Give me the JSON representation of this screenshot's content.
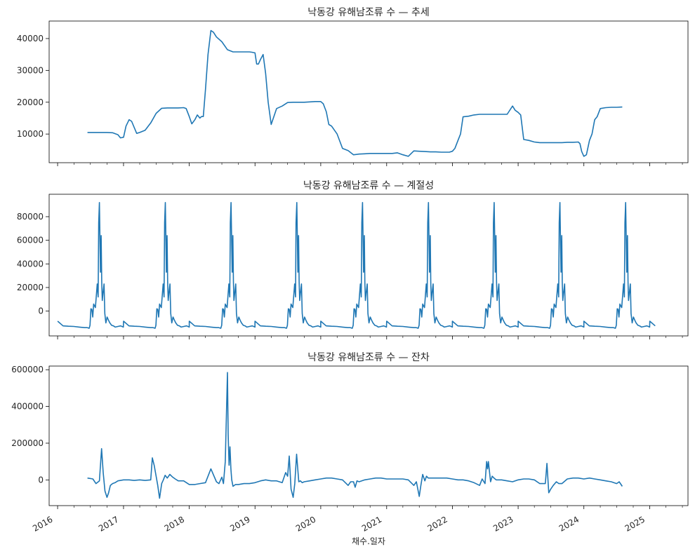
{
  "figure": {
    "xlabel": "채수.일자",
    "line_color": "#1f77b4",
    "x_ticks": [
      "2016-01-01",
      "2017-01-01",
      "2018-01-01",
      "2019-01-01",
      "2020-01-01",
      "2021-01-01",
      "2022-01-01",
      "2023-01-01",
      "2024-01-01",
      "2025-01-01"
    ],
    "x_tick_labels": [
      "2016",
      "2017",
      "2018",
      "2019",
      "2020",
      "2021",
      "2022",
      "2023",
      "2024",
      "2025"
    ],
    "x_range": [
      "2015-11-15",
      "2025-08-01"
    ]
  },
  "chart_data": [
    {
      "type": "line",
      "title": "낙동강 유해남조류 수 — 추세",
      "xlabel": "",
      "ylabel": "",
      "ylim": [
        1000,
        45500
      ],
      "y_ticks": [
        10000,
        20000,
        30000,
        40000
      ],
      "grid": false,
      "series": [
        {
          "x": [
            "2016-06-15",
            "2016-09-01",
            "2016-10-01",
            "2016-11-01",
            "2016-12-01",
            "2016-12-15",
            "2017-01-01",
            "2017-01-15",
            "2017-02-01",
            "2017-02-15",
            "2017-03-15",
            "2017-04-01",
            "2017-05-01",
            "2017-06-01",
            "2017-07-01",
            "2017-08-01",
            "2017-09-01",
            "2017-10-01",
            "2017-11-01",
            "2017-12-01",
            "2017-12-15",
            "2018-01-01",
            "2018-01-15",
            "2018-02-01",
            "2018-02-15",
            "2018-03-01",
            "2018-03-10",
            "2018-03-20",
            "2018-04-01",
            "2018-04-15",
            "2018-05-01",
            "2018-05-15",
            "2018-06-01",
            "2018-07-01",
            "2018-08-01",
            "2018-09-01",
            "2018-10-01",
            "2018-11-01",
            "2018-11-15",
            "2018-12-01",
            "2018-12-15",
            "2019-01-01",
            "2019-01-10",
            "2019-01-20",
            "2019-02-01",
            "2019-02-15",
            "2019-03-01",
            "2019-03-15",
            "2019-04-01",
            "2019-05-01",
            "2019-06-01",
            "2019-07-01",
            "2019-08-01",
            "2019-09-01",
            "2019-10-01",
            "2019-11-01",
            "2019-12-01",
            "2020-01-01",
            "2020-01-15",
            "2020-02-01",
            "2020-02-15",
            "2020-03-01",
            "2020-04-01",
            "2020-05-01",
            "2020-06-01",
            "2020-07-01",
            "2020-08-01",
            "2020-09-01",
            "2020-10-01",
            "2020-11-01",
            "2020-12-01",
            "2020-12-15",
            "2021-01-01",
            "2021-01-15",
            "2021-02-01",
            "2021-03-01",
            "2021-04-01",
            "2021-05-01",
            "2021-06-01",
            "2021-07-01",
            "2021-08-01",
            "2021-09-01",
            "2021-10-01",
            "2021-11-01",
            "2021-12-01",
            "2021-12-15",
            "2022-01-01",
            "2022-01-15",
            "2022-02-01",
            "2022-02-15",
            "2022-03-01",
            "2022-04-01",
            "2022-05-01",
            "2022-06-01",
            "2022-07-01",
            "2022-08-01",
            "2022-09-01",
            "2022-10-01",
            "2022-11-01",
            "2022-12-01",
            "2022-12-15",
            "2023-01-01",
            "2023-01-15",
            "2023-02-01",
            "2023-03-01",
            "2023-04-01",
            "2023-05-01",
            "2023-06-01",
            "2023-07-01",
            "2023-08-01",
            "2023-09-01",
            "2023-10-01",
            "2023-11-01",
            "2023-12-01",
            "2023-12-10",
            "2023-12-20",
            "2024-01-01",
            "2024-01-15",
            "2024-02-01",
            "2024-02-15",
            "2024-03-01",
            "2024-03-15",
            "2024-04-01",
            "2024-05-01",
            "2024-06-01",
            "2024-07-01",
            "2024-08-01"
          ],
          "y": [
            10500,
            10500,
            10500,
            10400,
            9800,
            8800,
            9000,
            12500,
            14500,
            14000,
            10200,
            10500,
            11200,
            13500,
            16500,
            18100,
            18200,
            18200,
            18200,
            18300,
            18000,
            15500,
            13200,
            14500,
            16000,
            15000,
            15500,
            15500,
            24000,
            35000,
            42500,
            42000,
            40500,
            39000,
            36500,
            35800,
            35800,
            35800,
            35800,
            35800,
            35700,
            35500,
            32000,
            32000,
            33500,
            35000,
            29000,
            20000,
            13000,
            18000,
            18800,
            19900,
            20000,
            20000,
            20000,
            20100,
            20200,
            20200,
            19500,
            17000,
            13000,
            12500,
            10000,
            5500,
            4800,
            3500,
            3700,
            3800,
            3900,
            3900,
            3900,
            3900,
            3900,
            3900,
            3900,
            4100,
            3500,
            3000,
            4700,
            4600,
            4500,
            4400,
            4400,
            4300,
            4300,
            4300,
            4600,
            5500,
            8000,
            10000,
            15400,
            15600,
            16000,
            16200,
            16200,
            16200,
            16200,
            16200,
            16200,
            18800,
            17500,
            16800,
            16000,
            8300,
            8000,
            7500,
            7300,
            7300,
            7300,
            7300,
            7300,
            7400,
            7400,
            7500,
            7000,
            4500,
            3000,
            3500,
            8000,
            10000,
            14500,
            15500,
            18000,
            18300,
            18400,
            18400,
            18500
          ],
          "color": "#1f77b4"
        }
      ]
    },
    {
      "type": "line",
      "title": "낙동강 유해남조류 수 — 계절성",
      "xlabel": "",
      "ylabel": "",
      "ylim": [
        -21000,
        99000
      ],
      "y_ticks": [
        0,
        20000,
        40000,
        60000,
        80000
      ],
      "grid": false,
      "seasonal_pattern": {
        "cycle_start": "01-01",
        "day_of_year": [
          0,
          30,
          60,
          90,
          120,
          150,
          165,
          175,
          180,
          185,
          190,
          195,
          200,
          210,
          220,
          225,
          228,
          232,
          238,
          242,
          245,
          248,
          252,
          258,
          262,
          268,
          275,
          282,
          290,
          300,
          310,
          320,
          335,
          350,
          365
        ],
        "y": [
          -8500,
          -12500,
          -12800,
          -13000,
          -13500,
          -14000,
          -14000,
          -14500,
          -12000,
          2000,
          1500,
          -5000,
          6000,
          3000,
          23000,
          12000,
          75000,
          92000,
          33000,
          64000,
          25000,
          9000,
          15000,
          23000,
          -2000,
          -10000,
          -5000,
          -7500,
          -10000,
          -12000,
          -12500,
          -13500,
          -13000,
          -12500,
          -13500
        ]
      },
      "x_start": "2016-01-01",
      "x_end": "2025-03-01",
      "series": [
        {
          "name": "",
          "color": "#1f77b4"
        }
      ]
    },
    {
      "type": "line",
      "title": "낙동강 유해남조류 수 — 잔차",
      "xlabel": "채수.일자",
      "ylabel": "",
      "ylim": [
        -140000,
        620000
      ],
      "y_ticks": [
        0,
        200000,
        400000,
        600000
      ],
      "grid": false,
      "series": [
        {
          "x": [
            "2016-06-15",
            "2016-07-15",
            "2016-08-01",
            "2016-08-20",
            "2016-09-01",
            "2016-09-10",
            "2016-09-20",
            "2016-10-01",
            "2016-10-10",
            "2016-10-20",
            "2016-11-01",
            "2016-11-15",
            "2016-12-01",
            "2017-01-01",
            "2017-02-01",
            "2017-03-01",
            "2017-04-01",
            "2017-05-01",
            "2017-06-01",
            "2017-06-10",
            "2017-06-20",
            "2017-07-01",
            "2017-07-10",
            "2017-07-20",
            "2017-08-01",
            "2017-08-10",
            "2017-08-20",
            "2017-09-01",
            "2017-09-15",
            "2017-10-01",
            "2017-10-15",
            "2017-11-01",
            "2017-12-01",
            "2018-01-01",
            "2018-02-01",
            "2018-03-01",
            "2018-04-01",
            "2018-05-01",
            "2018-06-01",
            "2018-06-15",
            "2018-07-01",
            "2018-07-10",
            "2018-07-20",
            "2018-08-01",
            "2018-08-05",
            "2018-08-10",
            "2018-08-15",
            "2018-08-20",
            "2018-08-25",
            "2018-09-01",
            "2018-09-15",
            "2018-10-01",
            "2018-11-01",
            "2018-12-01",
            "2019-01-01",
            "2019-02-01",
            "2019-03-01",
            "2019-04-01",
            "2019-05-01",
            "2019-06-01",
            "2019-06-20",
            "2019-07-01",
            "2019-07-10",
            "2019-07-20",
            "2019-08-01",
            "2019-08-10",
            "2019-08-20",
            "2019-09-01",
            "2019-09-10",
            "2019-09-20",
            "2019-10-01",
            "2019-11-01",
            "2019-12-01",
            "2020-01-01",
            "2020-02-01",
            "2020-03-01",
            "2020-04-01",
            "2020-05-01",
            "2020-06-01",
            "2020-06-15",
            "2020-07-01",
            "2020-07-10",
            "2020-07-20",
            "2020-08-01",
            "2020-09-01",
            "2020-10-01",
            "2020-11-01",
            "2020-12-01",
            "2021-01-01",
            "2021-02-01",
            "2021-03-01",
            "2021-04-01",
            "2021-05-01",
            "2021-06-01",
            "2021-06-15",
            "2021-07-01",
            "2021-07-10",
            "2021-07-20",
            "2021-08-01",
            "2021-08-10",
            "2021-08-20",
            "2021-09-01",
            "2021-10-01",
            "2021-11-01",
            "2021-12-01",
            "2022-01-01",
            "2022-02-01",
            "2022-03-01",
            "2022-04-01",
            "2022-05-01",
            "2022-06-01",
            "2022-06-15",
            "2022-07-01",
            "2022-07-10",
            "2022-07-15",
            "2022-07-20",
            "2022-08-01",
            "2022-08-10",
            "2022-08-20",
            "2022-09-01",
            "2022-10-01",
            "2022-11-01",
            "2022-12-01",
            "2023-01-01",
            "2023-02-01",
            "2023-03-01",
            "2023-04-01",
            "2023-05-01",
            "2023-06-01",
            "2023-06-10",
            "2023-06-20",
            "2023-07-01",
            "2023-07-15",
            "2023-08-01",
            "2023-08-15",
            "2023-09-01",
            "2023-10-01",
            "2023-11-01",
            "2023-12-01",
            "2024-01-01",
            "2024-02-01",
            "2024-03-01",
            "2024-04-01",
            "2024-05-01",
            "2024-06-01",
            "2024-07-01",
            "2024-07-15",
            "2024-08-01"
          ],
          "y": [
            10000,
            5000,
            -20000,
            -5000,
            170000,
            40000,
            -60000,
            -95000,
            -70000,
            -30000,
            -20000,
            -15000,
            -5000,
            0,
            0,
            -3000,
            0,
            -3000,
            0,
            120000,
            80000,
            20000,
            -30000,
            -100000,
            -20000,
            0,
            25000,
            10000,
            30000,
            15000,
            5000,
            -5000,
            -5000,
            -25000,
            -25000,
            -20000,
            -15000,
            60000,
            -10000,
            -20000,
            15000,
            -20000,
            100000,
            585000,
            250000,
            80000,
            180000,
            60000,
            0,
            -35000,
            -25000,
            -25000,
            -20000,
            -20000,
            -15000,
            -5000,
            0,
            -5000,
            -5000,
            -15000,
            40000,
            20000,
            130000,
            -50000,
            -95000,
            -20000,
            140000,
            -10000,
            -5000,
            -15000,
            -10000,
            -5000,
            0,
            5000,
            10000,
            10000,
            5000,
            0,
            -30000,
            -10000,
            -10000,
            -40000,
            -5000,
            -10000,
            0,
            5000,
            10000,
            10000,
            5000,
            5000,
            5000,
            5000,
            0,
            -30000,
            -10000,
            -90000,
            -30000,
            30000,
            -5000,
            20000,
            10000,
            10000,
            10000,
            10000,
            10000,
            5000,
            0,
            0,
            -5000,
            -15000,
            -30000,
            5000,
            -20000,
            100000,
            60000,
            100000,
            -10000,
            20000,
            10000,
            0,
            0,
            -5000,
            -10000,
            0,
            5000,
            5000,
            0,
            -20000,
            -20000,
            90000,
            -70000,
            -50000,
            -30000,
            -10000,
            -20000,
            -20000,
            5000,
            10000,
            10000,
            5000,
            10000,
            5000,
            0,
            -5000,
            -10000,
            -20000,
            -10000,
            -35000
          ]
        }
      ]
    }
  ]
}
